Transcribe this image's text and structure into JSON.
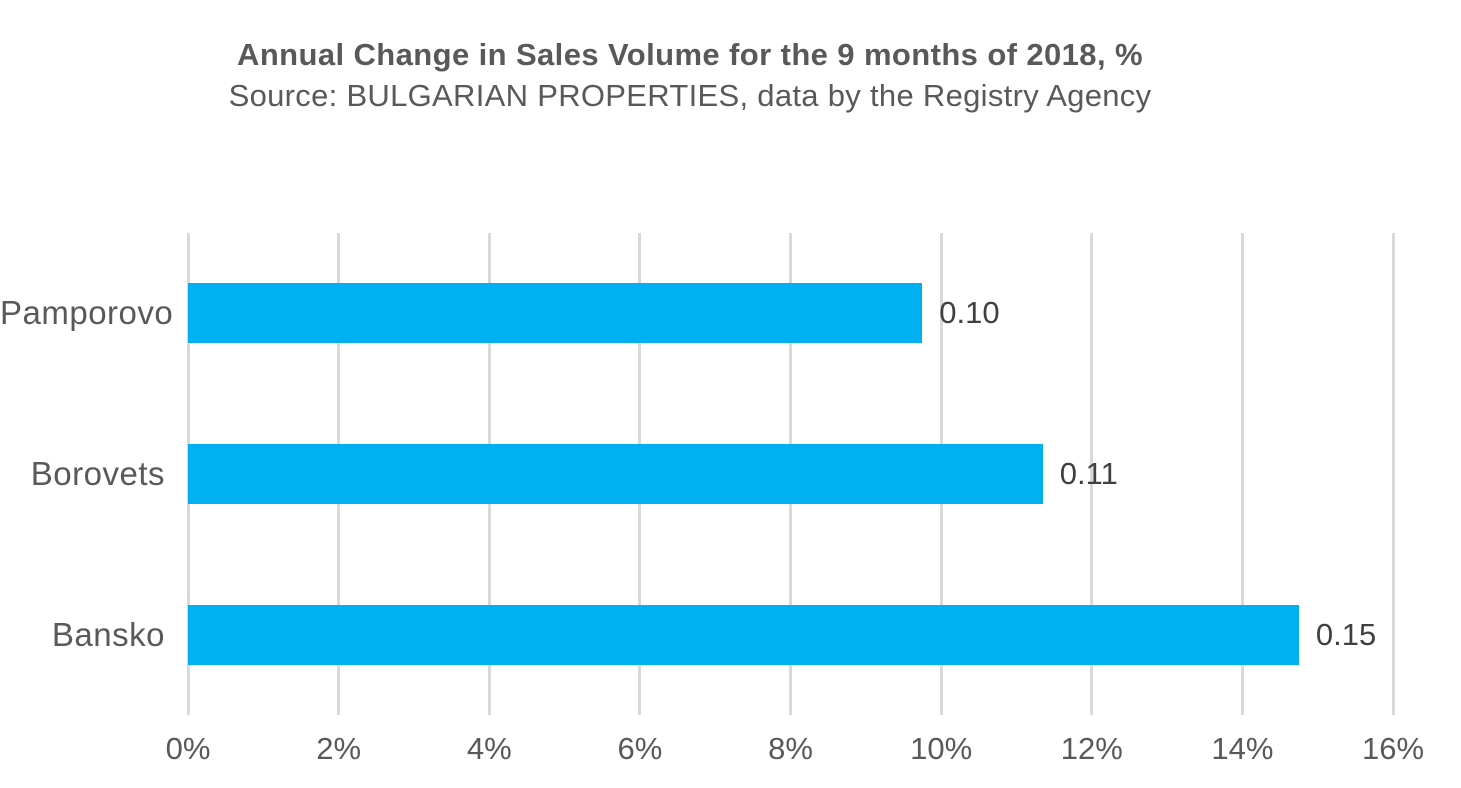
{
  "colors": {
    "bar": "#00B0F0",
    "gridline": "#D9D9D9",
    "axis_text": "#595959",
    "data_label_text": "#404040",
    "background": "#FFFFFF"
  },
  "chart_data": {
    "type": "bar",
    "orientation": "horizontal",
    "title": "Annual Change in Sales Volume for the 9 months of 2018, %",
    "subtitle": "Source: BULGARIAN PROPERTIES, data by the Registry Agency",
    "categories": [
      "Pamporovo",
      "Borovets",
      "Bansko"
    ],
    "values_percent": [
      9.75,
      11.35,
      14.75
    ],
    "data_labels": [
      "0.10",
      "0.11",
      "0.15"
    ],
    "xlabel": "",
    "ylabel": "",
    "xlim": [
      0,
      16
    ],
    "x_ticks": [
      "0%",
      "2%",
      "4%",
      "6%",
      "8%",
      "10%",
      "12%",
      "14%",
      "16%"
    ],
    "x_tick_values": [
      0,
      2,
      4,
      6,
      8,
      10,
      12,
      14,
      16
    ],
    "grid": "vertical-only",
    "legend": "none"
  }
}
